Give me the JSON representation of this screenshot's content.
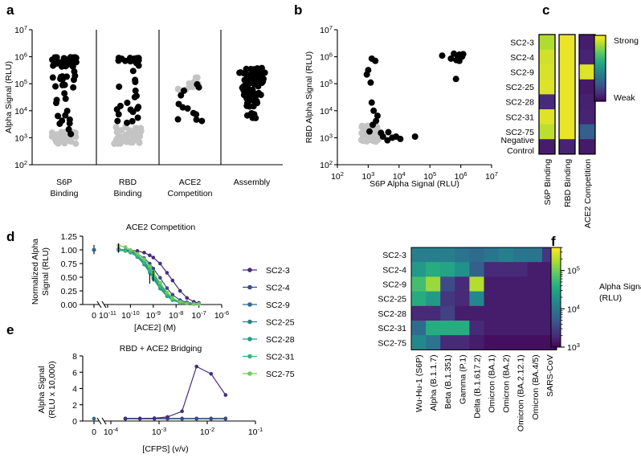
{
  "panel_labels": {
    "a": "a",
    "b": "b",
    "c": "c",
    "d": "d",
    "e": "e",
    "f": "f"
  },
  "colors": {
    "black_dot": "#000000",
    "grey_dot": "#c4c4c4",
    "viridis": [
      "#440154",
      "#472d7b",
      "#3b528b",
      "#2c728e",
      "#21918c",
      "#28ae80",
      "#5ec962",
      "#addc30",
      "#fde725"
    ],
    "binder_series": [
      "#472c7a",
      "#3f4889",
      "#31688e",
      "#26828e",
      "#1f9e89",
      "#35b779",
      "#6ece58"
    ]
  },
  "chart_data": [
    {
      "panel": "a",
      "type": "scatter",
      "ylabel": "Alpha Signal (RLU)",
      "yscale": "log",
      "ylim": [
        100,
        10000000
      ],
      "ytick_labels": [
        "10",
        "10",
        "10",
        "10",
        "10",
        "10"
      ],
      "ytick_exponents": [
        "2",
        "3",
        "4",
        "5",
        "6",
        "7"
      ],
      "categories": [
        {
          "label_line1": "S6P",
          "label_line2": "Binding",
          "black_n": 55,
          "black_range": [
            800,
            1000000
          ],
          "grey_n": 40,
          "grey_range": [
            600,
            1800
          ]
        },
        {
          "label_line1": "RBD",
          "label_line2": "Binding",
          "black_n": 35,
          "black_range": [
            3000,
            1000000
          ],
          "grey_n": 50,
          "grey_range": [
            600,
            2500
          ]
        },
        {
          "label_line1": "ACE2",
          "label_line2": "Competition",
          "black_n": 12,
          "black_range": [
            4000,
            130000
          ],
          "grey_n": 14,
          "grey_range": [
            60000,
            180000
          ]
        },
        {
          "label_line1": "Assembly",
          "label_line2": "",
          "black_n": 85,
          "black_range": [
            2500,
            400000
          ],
          "grey_n": 0,
          "grey_range": [
            0,
            0
          ]
        }
      ]
    },
    {
      "panel": "b",
      "type": "scatter",
      "xlabel": "S6P Alpha Signal (RLU)",
      "ylabel": "RBD Alpha Signal (RLU)",
      "xscale": "log",
      "yscale": "log",
      "xlim": [
        100,
        10000000
      ],
      "ylim": [
        100,
        10000000
      ],
      "tick_labels": [
        "10",
        "10",
        "10",
        "10",
        "10",
        "10"
      ],
      "tick_exponents": [
        "2",
        "3",
        "4",
        "5",
        "6",
        "7"
      ],
      "black_points": [
        [
          1300,
          850000
        ],
        [
          1700,
          700000
        ],
        [
          1000,
          320000
        ],
        [
          900,
          220000
        ],
        [
          1200,
          110000
        ],
        [
          1300,
          20000
        ],
        [
          1500,
          10000
        ],
        [
          2000,
          6500
        ],
        [
          1800,
          4200
        ],
        [
          1400,
          3000
        ],
        [
          1100,
          1700
        ],
        [
          2600,
          1500
        ],
        [
          3000,
          1100
        ],
        [
          4500,
          1600
        ],
        [
          6000,
          1000
        ],
        [
          8000,
          1100
        ],
        [
          11000,
          900
        ],
        [
          4200,
          800
        ],
        [
          33000,
          1100
        ],
        [
          250000,
          1100000
        ],
        [
          480000,
          850000
        ],
        [
          600000,
          1300000
        ],
        [
          900000,
          1200000
        ],
        [
          1100000,
          1000000
        ],
        [
          800000,
          1100000
        ],
        [
          1200000,
          1250000
        ],
        [
          720000,
          750000
        ],
        [
          900000,
          700000
        ],
        [
          700000,
          150000
        ]
      ],
      "grey_n": 55,
      "grey_cluster": {
        "x_range": [
          600,
          2500
        ],
        "y_range": [
          700,
          2800
        ]
      }
    },
    {
      "panel": "c",
      "type": "heatmap",
      "rows": [
        "SC2-3",
        "SC2-4",
        "SC2-9",
        "SC2-25",
        "SC2-28",
        "SC2-31",
        "SC2-75"
      ],
      "row_label_last_line1": "Negative",
      "row_label_last_line2": "Control",
      "columns": [
        "S6P Binding",
        "RBD Binding",
        "ACE2 Competition"
      ],
      "values": [
        [
          0.88,
          0.97,
          0.08
        ],
        [
          0.93,
          0.97,
          0.1
        ],
        [
          0.94,
          0.97,
          0.95
        ],
        [
          0.95,
          0.97,
          0.07
        ],
        [
          0.12,
          0.97,
          0.09
        ],
        [
          0.95,
          0.97,
          0.1
        ],
        [
          0.9,
          0.97,
          0.3
        ],
        [
          0.08,
          0.1,
          0.07
        ]
      ],
      "legend_high": "Strong",
      "legend_low": "Weak"
    },
    {
      "panel": "d",
      "type": "line",
      "title": "ACE2 Competition",
      "ylabel_line1": "Normalized Alpha",
      "ylabel_line2": "Signal (RLU)",
      "xlabel": "[ACE2] (M)",
      "xscale": "log",
      "xlim": [
        1e-11,
        1e-06
      ],
      "ylim": [
        0,
        1.25
      ],
      "ytick_labels": [
        "0.00",
        "0.25",
        "0.50",
        "0.75",
        "1.00",
        "1.25"
      ],
      "xtick_zero": "0",
      "xtick_labels": [
        "10",
        "10",
        "10",
        "10",
        "10",
        "10"
      ],
      "xtick_exponents": [
        "-11",
        "-10",
        "-9",
        "-8",
        "-7",
        "-6"
      ],
      "x": [
        3e-11,
        6e-11,
        1e-10,
        2e-10,
        4e-10,
        7e-10,
        1e-09,
        2e-09,
        4e-09,
        7e-09,
        1.5e-08,
        3e-08,
        6e-08,
        1e-07
      ],
      "series": [
        {
          "name": "SC2-3",
          "values": [
            1.0,
            1.0,
            0.99,
            0.98,
            0.95,
            0.9,
            0.86,
            0.75,
            0.58,
            0.44,
            0.25,
            0.12,
            0.05,
            0.03
          ]
        },
        {
          "name": "SC2-4",
          "values": [
            1.0,
            0.99,
            0.97,
            0.93,
            0.85,
            0.75,
            0.66,
            0.49,
            0.3,
            0.18,
            0.08,
            0.04,
            0.02,
            0.01
          ]
        },
        {
          "name": "SC2-9",
          "values": [
            1.0,
            0.98,
            0.95,
            0.88,
            0.75,
            0.61,
            0.5,
            0.32,
            0.17,
            0.09,
            0.04,
            0.02,
            0.01,
            0.01
          ]
        },
        {
          "name": "SC2-25",
          "values": [
            1.02,
            0.99,
            0.96,
            0.9,
            0.79,
            0.66,
            0.55,
            0.37,
            0.2,
            0.11,
            0.05,
            0.02,
            0.01,
            0.01
          ]
        },
        {
          "name": "SC2-28",
          "values": [
            0.99,
            0.98,
            0.95,
            0.87,
            0.73,
            0.58,
            0.47,
            0.29,
            0.15,
            0.08,
            0.03,
            0.02,
            0.01,
            0.01
          ]
        },
        {
          "name": "SC2-31",
          "values": [
            1.0,
            0.98,
            0.96,
            0.89,
            0.77,
            0.63,
            0.52,
            0.34,
            0.18,
            0.1,
            0.04,
            0.02,
            0.01,
            0.01
          ]
        },
        {
          "name": "SC2-75",
          "values": [
            1.08,
            1.05,
            1.0,
            0.93,
            0.83,
            0.7,
            0.59,
            0.4,
            0.22,
            0.12,
            0.05,
            0.02,
            0.01,
            0.01
          ]
        }
      ],
      "zero_point_value": 1.0
    },
    {
      "panel": "e",
      "type": "line",
      "title": "RBD + ACE2 Bridging",
      "ylabel_line1": "Alpha Signal",
      "ylabel_line2": "(RLU x 10,000)",
      "xlabel": "[CFPS] (v/v)",
      "xscale": "log",
      "xlim": [
        0.0001,
        0.1
      ],
      "ylim": [
        0,
        8
      ],
      "ytick_labels": [
        "0",
        "2",
        "4",
        "6",
        "8"
      ],
      "xtick_zero": "0",
      "xtick_labels": [
        "10",
        "10",
        "10",
        "10"
      ],
      "xtick_exponents": [
        "-4",
        "-3",
        "-2",
        "-1"
      ],
      "x": [
        0.0002,
        0.0004,
        0.0008,
        0.0015,
        0.003,
        0.006,
        0.012,
        0.024
      ],
      "series": [
        {
          "name": "SC2-3",
          "values": [
            0.3,
            0.3,
            0.35,
            0.5,
            1.2,
            6.7,
            5.8,
            3.2
          ]
        },
        {
          "name": "SC2-4",
          "values": [
            0.3,
            0.3,
            0.3,
            0.3,
            0.3,
            0.3,
            0.3,
            0.3
          ]
        },
        {
          "name": "SC2-9",
          "values": [
            0.3,
            0.3,
            0.3,
            0.3,
            0.3,
            0.3,
            0.3,
            0.3
          ]
        },
        {
          "name": "SC2-25",
          "values": [
            0.3,
            0.3,
            0.3,
            0.3,
            0.3,
            0.3,
            0.3,
            0.3
          ]
        },
        {
          "name": "SC2-28",
          "values": [
            0.3,
            0.3,
            0.3,
            0.3,
            0.3,
            0.3,
            0.3,
            0.3
          ]
        },
        {
          "name": "SC2-31",
          "values": [
            0.3,
            0.3,
            0.3,
            0.3,
            0.3,
            0.3,
            0.3,
            0.3
          ]
        },
        {
          "name": "SC2-75",
          "values": [
            0.3,
            0.3,
            0.3,
            0.3,
            0.3,
            0.3,
            0.3,
            0.3
          ]
        }
      ],
      "zero_point_value": 0.3
    },
    {
      "panel": "f",
      "type": "heatmap",
      "rows": [
        "SC2-3",
        "SC2-4",
        "SC2-9",
        "SC2-25",
        "SC2-28",
        "SC2-31",
        "SC2-75"
      ],
      "columns": [
        "Wu-Hu-1 (S6P)",
        "Alpha (B.1.1.7)",
        "Beta (B.1.351)",
        "Gamma (P.1)",
        "Delta (B.1.617.2)",
        "Omicron (BA.1)",
        "Omicron (BA.2)",
        "Omicron (BA.2.12.1)",
        "Omicron (BA.4/5)",
        "SARS-CoV"
      ],
      "log10_values": [
        [
          4.1,
          4.1,
          4.1,
          4.0,
          3.9,
          4.0,
          4.1,
          4.0,
          4.0,
          3.4
        ],
        [
          4.4,
          4.6,
          4.5,
          4.3,
          3.8,
          3.3,
          3.3,
          3.3,
          3.2,
          3.2
        ],
        [
          4.8,
          5.2,
          3.6,
          3.3,
          5.3,
          3.2,
          3.2,
          3.2,
          3.2,
          3.2
        ],
        [
          4.6,
          4.4,
          3.4,
          3.3,
          4.2,
          3.2,
          3.2,
          3.2,
          3.2,
          3.2
        ],
        [
          3.3,
          3.3,
          3.5,
          3.2,
          3.2,
          3.2,
          3.2,
          3.2,
          3.2,
          3.2
        ],
        [
          3.9,
          4.6,
          4.6,
          4.6,
          3.3,
          3.2,
          3.2,
          3.2,
          3.2,
          3.2
        ],
        [
          4.2,
          4.0,
          3.3,
          3.3,
          3.2,
          3.1,
          3.1,
          3.1,
          3.1,
          3.1
        ]
      ],
      "colorbar": {
        "label_line1": "Alpha Signal",
        "label_line2": "(RLU)",
        "range_log10": [
          3,
          5.6
        ],
        "tick_labels": [
          "10",
          "10",
          "10"
        ],
        "tick_exponents": [
          "3",
          "4",
          "5"
        ]
      }
    }
  ]
}
